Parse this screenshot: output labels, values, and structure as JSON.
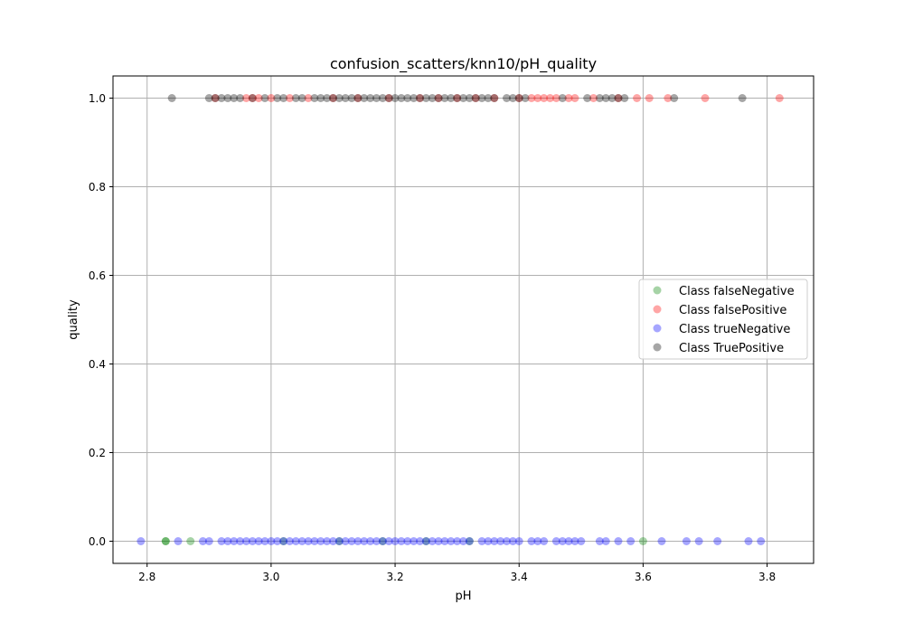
{
  "chart_data": {
    "type": "scatter",
    "title": "confusion_scatters/knn10/pH_quality",
    "xlabel": "pH",
    "ylabel": "quality",
    "xlim": [
      2.745,
      3.875
    ],
    "ylim": [
      -0.05,
      1.05
    ],
    "xticks": [
      2.8,
      3.0,
      3.2,
      3.4,
      3.6,
      3.8
    ],
    "yticks": [
      0.0,
      0.2,
      0.4,
      0.6,
      0.8,
      1.0
    ],
    "xtick_labels": [
      "2.8",
      "3.0",
      "3.2",
      "3.4",
      "3.6",
      "3.8"
    ],
    "ytick_labels": [
      "0.0",
      "0.2",
      "0.4",
      "0.6",
      "0.8",
      "1.0"
    ],
    "grid": true,
    "legend_position": "center-right",
    "series": [
      {
        "name": "Class falseNegative",
        "color": "#008000",
        "points": [
          [
            2.83,
            0
          ],
          [
            2.83,
            0
          ],
          [
            2.87,
            0
          ],
          [
            3.02,
            0
          ],
          [
            3.11,
            0
          ],
          [
            3.18,
            0
          ],
          [
            3.25,
            0
          ],
          [
            3.32,
            0
          ],
          [
            3.6,
            0
          ]
        ]
      },
      {
        "name": "Class falsePositive",
        "color": "#ff0000",
        "points": [
          [
            2.91,
            1
          ],
          [
            2.96,
            1
          ],
          [
            2.97,
            1
          ],
          [
            2.98,
            1
          ],
          [
            3.0,
            1
          ],
          [
            3.03,
            1
          ],
          [
            3.06,
            1
          ],
          [
            3.1,
            1
          ],
          [
            3.14,
            1
          ],
          [
            3.19,
            1
          ],
          [
            3.24,
            1
          ],
          [
            3.27,
            1
          ],
          [
            3.3,
            1
          ],
          [
            3.33,
            1
          ],
          [
            3.36,
            1
          ],
          [
            3.4,
            1
          ],
          [
            3.42,
            1
          ],
          [
            3.43,
            1
          ],
          [
            3.44,
            1
          ],
          [
            3.45,
            1
          ],
          [
            3.46,
            1
          ],
          [
            3.48,
            1
          ],
          [
            3.49,
            1
          ],
          [
            3.52,
            1
          ],
          [
            3.56,
            1
          ],
          [
            3.59,
            1
          ],
          [
            3.61,
            1
          ],
          [
            3.64,
            1
          ],
          [
            3.7,
            1
          ],
          [
            3.82,
            1
          ]
        ]
      },
      {
        "name": "Class trueNegative",
        "color": "#0000ff",
        "points": [
          [
            2.79,
            0
          ],
          [
            2.85,
            0
          ],
          [
            2.89,
            0
          ],
          [
            2.9,
            0
          ],
          [
            2.92,
            0
          ],
          [
            2.93,
            0
          ],
          [
            2.94,
            0
          ],
          [
            2.95,
            0
          ],
          [
            2.96,
            0
          ],
          [
            2.97,
            0
          ],
          [
            2.98,
            0
          ],
          [
            2.99,
            0
          ],
          [
            3.0,
            0
          ],
          [
            3.01,
            0
          ],
          [
            3.02,
            0
          ],
          [
            3.03,
            0
          ],
          [
            3.04,
            0
          ],
          [
            3.05,
            0
          ],
          [
            3.06,
            0
          ],
          [
            3.07,
            0
          ],
          [
            3.08,
            0
          ],
          [
            3.09,
            0
          ],
          [
            3.1,
            0
          ],
          [
            3.11,
            0
          ],
          [
            3.12,
            0
          ],
          [
            3.13,
            0
          ],
          [
            3.14,
            0
          ],
          [
            3.15,
            0
          ],
          [
            3.16,
            0
          ],
          [
            3.17,
            0
          ],
          [
            3.18,
            0
          ],
          [
            3.19,
            0
          ],
          [
            3.2,
            0
          ],
          [
            3.21,
            0
          ],
          [
            3.22,
            0
          ],
          [
            3.23,
            0
          ],
          [
            3.24,
            0
          ],
          [
            3.25,
            0
          ],
          [
            3.26,
            0
          ],
          [
            3.27,
            0
          ],
          [
            3.28,
            0
          ],
          [
            3.29,
            0
          ],
          [
            3.3,
            0
          ],
          [
            3.31,
            0
          ],
          [
            3.32,
            0
          ],
          [
            3.34,
            0
          ],
          [
            3.35,
            0
          ],
          [
            3.36,
            0
          ],
          [
            3.37,
            0
          ],
          [
            3.38,
            0
          ],
          [
            3.39,
            0
          ],
          [
            3.4,
            0
          ],
          [
            3.42,
            0
          ],
          [
            3.43,
            0
          ],
          [
            3.44,
            0
          ],
          [
            3.46,
            0
          ],
          [
            3.47,
            0
          ],
          [
            3.48,
            0
          ],
          [
            3.49,
            0
          ],
          [
            3.5,
            0
          ],
          [
            3.53,
            0
          ],
          [
            3.54,
            0
          ],
          [
            3.56,
            0
          ],
          [
            3.58,
            0
          ],
          [
            3.63,
            0
          ],
          [
            3.67,
            0
          ],
          [
            3.69,
            0
          ],
          [
            3.72,
            0
          ],
          [
            3.77,
            0
          ],
          [
            3.79,
            0
          ]
        ]
      },
      {
        "name": "Class TruePositive",
        "color": "#000000",
        "points": [
          [
            2.84,
            1
          ],
          [
            2.9,
            1
          ],
          [
            2.91,
            1
          ],
          [
            2.92,
            1
          ],
          [
            2.93,
            1
          ],
          [
            2.94,
            1
          ],
          [
            2.95,
            1
          ],
          [
            2.97,
            1
          ],
          [
            2.99,
            1
          ],
          [
            3.01,
            1
          ],
          [
            3.02,
            1
          ],
          [
            3.04,
            1
          ],
          [
            3.05,
            1
          ],
          [
            3.07,
            1
          ],
          [
            3.08,
            1
          ],
          [
            3.09,
            1
          ],
          [
            3.1,
            1
          ],
          [
            3.11,
            1
          ],
          [
            3.12,
            1
          ],
          [
            3.13,
            1
          ],
          [
            3.14,
            1
          ],
          [
            3.15,
            1
          ],
          [
            3.16,
            1
          ],
          [
            3.17,
            1
          ],
          [
            3.18,
            1
          ],
          [
            3.19,
            1
          ],
          [
            3.2,
            1
          ],
          [
            3.21,
            1
          ],
          [
            3.22,
            1
          ],
          [
            3.23,
            1
          ],
          [
            3.24,
            1
          ],
          [
            3.25,
            1
          ],
          [
            3.26,
            1
          ],
          [
            3.27,
            1
          ],
          [
            3.28,
            1
          ],
          [
            3.29,
            1
          ],
          [
            3.3,
            1
          ],
          [
            3.31,
            1
          ],
          [
            3.32,
            1
          ],
          [
            3.33,
            1
          ],
          [
            3.34,
            1
          ],
          [
            3.35,
            1
          ],
          [
            3.36,
            1
          ],
          [
            3.38,
            1
          ],
          [
            3.39,
            1
          ],
          [
            3.4,
            1
          ],
          [
            3.41,
            1
          ],
          [
            3.47,
            1
          ],
          [
            3.51,
            1
          ],
          [
            3.53,
            1
          ],
          [
            3.54,
            1
          ],
          [
            3.55,
            1
          ],
          [
            3.56,
            1
          ],
          [
            3.57,
            1
          ],
          [
            3.65,
            1
          ],
          [
            3.76,
            1
          ]
        ]
      }
    ]
  }
}
